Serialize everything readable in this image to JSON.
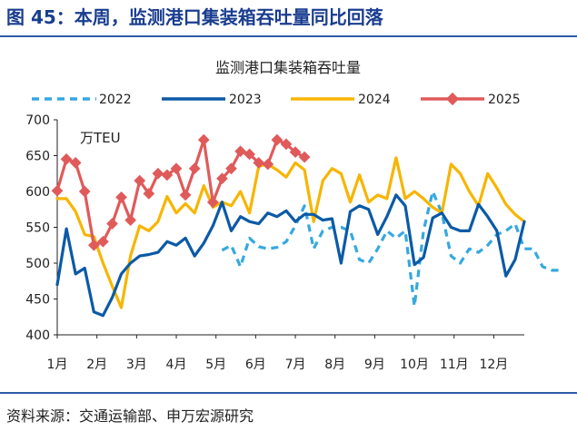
{
  "header": {
    "title": "图 45：本周，监测港口集装箱吞吐量同比回落"
  },
  "source": "资料来源：交通运输部、申万宏源研究",
  "chart_data": {
    "type": "line",
    "title": "监测港口集装箱吞吐量",
    "unit": "万TEU",
    "ylim": [
      400,
      700
    ],
    "yticks": [
      400,
      450,
      500,
      550,
      600,
      650,
      700
    ],
    "month_labels": [
      "1月",
      "2月",
      "3月",
      "4月",
      "5月",
      "6月",
      "7月",
      "8月",
      "9月",
      "10月",
      "11月",
      "12月"
    ],
    "x_unit": "week",
    "series": [
      {
        "name": "2022",
        "color": "#35a8e0",
        "style": "dashed",
        "start_week": 19,
        "values": [
          518,
          525,
          495,
          535,
          523,
          520,
          522,
          530,
          552,
          580,
          520,
          545,
          550,
          550,
          545,
          505,
          500,
          520,
          545,
          535,
          545,
          440,
          545,
          600,
          570,
          510,
          500,
          520,
          515,
          525,
          540,
          545,
          555,
          520,
          520,
          495,
          490,
          490
        ]
      },
      {
        "name": "2023",
        "color": "#0b5aa6",
        "style": "solid",
        "start_week": 1,
        "values": [
          470,
          548,
          485,
          493,
          432,
          427,
          452,
          485,
          500,
          510,
          512,
          515,
          530,
          525,
          535,
          510,
          528,
          552,
          585,
          545,
          565,
          558,
          555,
          570,
          565,
          573,
          558,
          568,
          568,
          560,
          562,
          500,
          572,
          580,
          575,
          540,
          565,
          595,
          580,
          498,
          508,
          563,
          570,
          550,
          545,
          545,
          582,
          565,
          545,
          482,
          505,
          558
        ]
      },
      {
        "name": "2024",
        "color": "#f7b500",
        "style": "solid",
        "start_week": 1,
        "values": [
          590,
          590,
          572,
          540,
          537,
          500,
          468,
          438,
          510,
          552,
          545,
          558,
          593,
          570,
          583,
          570,
          608,
          578,
          585,
          580,
          600,
          570,
          635,
          638,
          630,
          620,
          640,
          630,
          558,
          615,
          632,
          625,
          585,
          623,
          585,
          595,
          590,
          647,
          590,
          600,
          590,
          578,
          570,
          638,
          625,
          600,
          580,
          625,
          605,
          582,
          568,
          558
        ]
      },
      {
        "name": "2025",
        "color": "#e05a5a",
        "style": "solid-marker",
        "start_week": 1,
        "values": [
          601,
          645,
          640,
          600,
          525,
          530,
          555,
          592,
          560,
          615,
          597,
          625,
          623,
          632,
          595,
          632,
          672,
          585,
          618,
          632,
          656,
          652,
          640,
          638,
          672,
          666,
          655,
          648
        ]
      }
    ]
  }
}
